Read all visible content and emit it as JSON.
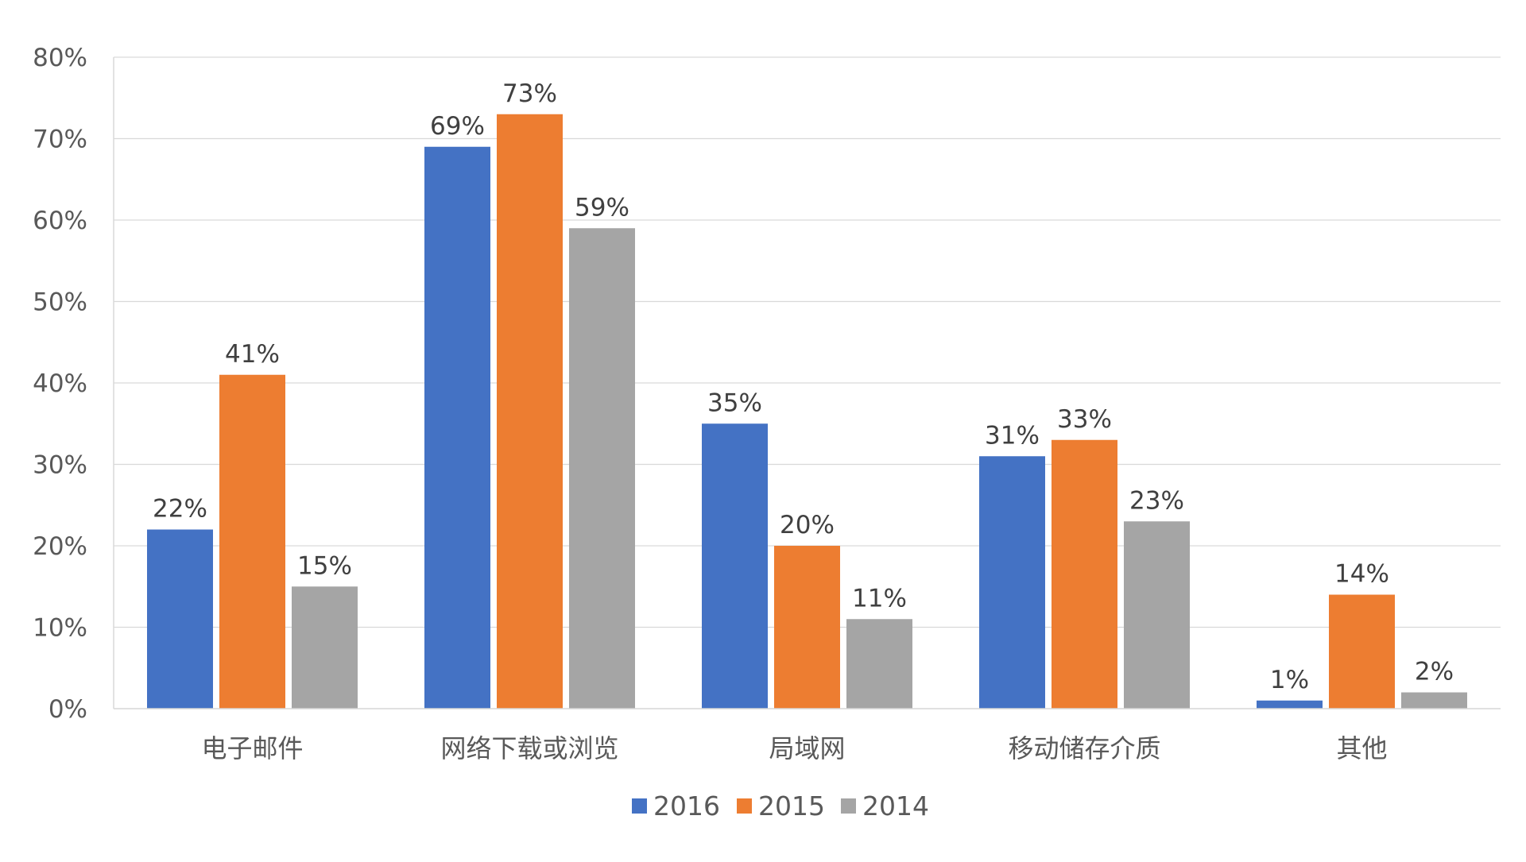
{
  "chart_data": {
    "type": "bar",
    "title": "",
    "xlabel": "",
    "ylabel": "",
    "categories": [
      "电子邮件",
      "网络下载或浏览",
      "局域网",
      "移动储存介质",
      "其他"
    ],
    "series": [
      {
        "name": "2016",
        "color": "#4472C4",
        "values": [
          22,
          69,
          35,
          31,
          1
        ]
      },
      {
        "name": "2015",
        "color": "#ED7D31",
        "values": [
          41,
          73,
          20,
          33,
          14
        ]
      },
      {
        "name": "2014",
        "color": "#A5A5A5",
        "values": [
          15,
          59,
          11,
          23,
          2
        ]
      }
    ],
    "ylim": [
      0,
      80
    ],
    "yticks": [
      "0%",
      "10%",
      "20%",
      "30%",
      "40%",
      "50%",
      "60%",
      "70%",
      "80%"
    ],
    "value_suffix": "%",
    "grid": true,
    "legend_position": "bottom"
  }
}
